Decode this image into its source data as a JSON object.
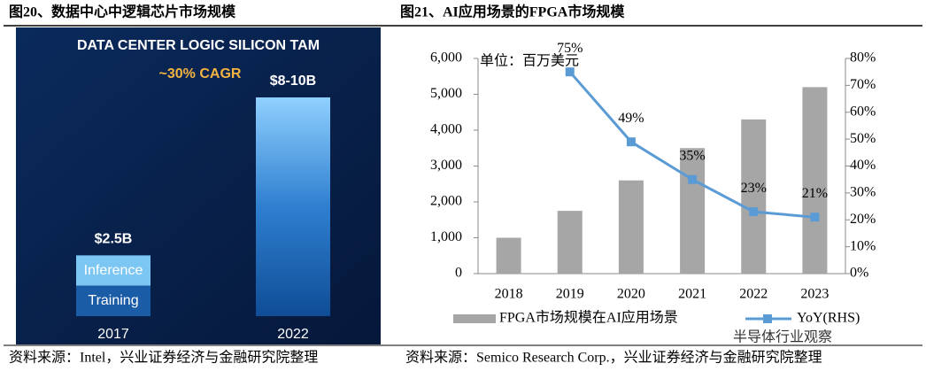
{
  "captions": [
    {
      "title": "图20、数据中心中逻辑芯片市场规模",
      "source": "资料来源：Intel，兴业证券经济与金融研究院整理"
    },
    {
      "title": "图21、AI应用场景的FPGA市场规模",
      "source": "资料来源：Semico Research Corp.，兴业证券经济与金融研究院整理"
    }
  ],
  "watermark": "半导体行业观察",
  "chart_data": [
    {
      "type": "bar",
      "title": "DATA CENTER LOGIC SILICON TAM",
      "annotation": "~30% CAGR",
      "categories": [
        "2017",
        "2022"
      ],
      "values": [
        2.5,
        9
      ],
      "value_labels": [
        "$2.5B",
        "$8-10B"
      ],
      "segment_labels": [
        "Inference",
        "Training"
      ],
      "color": "#2f7fd0"
    },
    {
      "type": "bar_line",
      "annotation": "单位：百万美元",
      "categories": [
        "2018",
        "2019",
        "2020",
        "2021",
        "2022",
        "2023"
      ],
      "series": [
        {
          "name": "FPGA市场规模在AI应用场景",
          "color": "#a6a6a6",
          "values": [
            1000,
            1750,
            2600,
            3500,
            4300,
            5200
          ]
        },
        {
          "name": "YoY(RHS)",
          "color": "#5b9bd5",
          "axis": "y2",
          "values": [
            null,
            75,
            49,
            35,
            23,
            21
          ],
          "value_labels": [
            null,
            "75%",
            "49%",
            "35%",
            "23%",
            "21%"
          ]
        }
      ],
      "ylim": [
        0,
        6000
      ],
      "yticks": [
        0,
        {
          "value": 1000,
          "label": "1,000"
        },
        {
          "value": 2000,
          "label": "2,000"
        },
        {
          "value": 3000,
          "label": "3,000"
        },
        {
          "value": 4000,
          "label": "4,000"
        },
        {
          "value": 5000,
          "label": "5,000"
        },
        {
          "value": 6000,
          "label": "6,000"
        }
      ],
      "y2lim": [
        0,
        80
      ],
      "y2ticks": [
        {
          "value": 0,
          "label": "0%"
        },
        {
          "value": 10,
          "label": "10%"
        },
        {
          "value": 20,
          "label": "20%"
        },
        {
          "value": 30,
          "label": "30%"
        },
        {
          "value": 40,
          "label": "40%"
        },
        {
          "value": 50,
          "label": "50%"
        },
        {
          "value": 60,
          "label": "60%"
        },
        {
          "value": 70,
          "label": "70%"
        },
        {
          "value": 80,
          "label": "80%"
        }
      ],
      "legend": "bottom"
    }
  ]
}
